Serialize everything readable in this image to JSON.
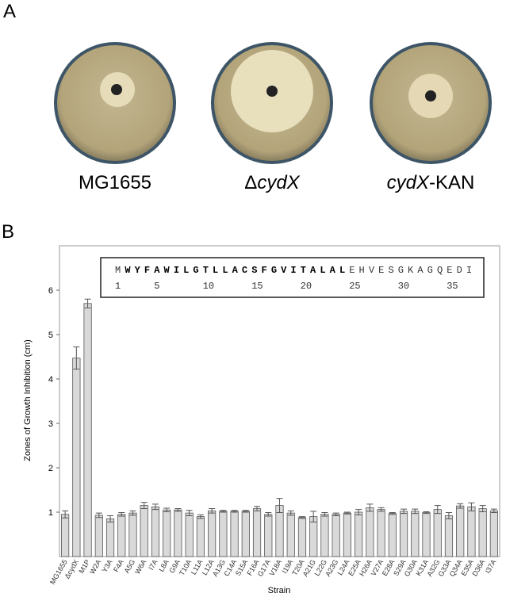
{
  "panel_a": {
    "label": "A",
    "plates": [
      {
        "label_parts": [
          "MG1655"
        ]
      },
      {
        "label_parts": [
          "Δ",
          "cydX"
        ]
      },
      {
        "label_parts": [
          "cydX",
          "-KAN"
        ]
      }
    ]
  },
  "chart_data": {
    "type": "bar",
    "panel_label": "B",
    "y_label": "Zones of Growth Inhibition (cm)",
    "x_label": "Strain",
    "categories": [
      "MG1655",
      "ΔcydX",
      "M1P",
      "W2A",
      "Y3A",
      "F4A",
      "A5G",
      "W6A",
      "I7A",
      "L8A",
      "G9A",
      "T10A",
      "L11A",
      "L12A",
      "A13G",
      "C14A",
      "S15A",
      "F16A",
      "G17A",
      "V18A",
      "I19A",
      "T20A",
      "A21G",
      "L22G",
      "A23G",
      "L24A",
      "E25A",
      "H26A",
      "V27A",
      "E28A",
      "S29A",
      "G30A",
      "K31A",
      "A32G",
      "G33A",
      "Q34A",
      "E35A",
      "D36A",
      "I37A"
    ],
    "values": [
      0.95,
      4.47,
      5.7,
      0.93,
      0.85,
      0.95,
      0.98,
      1.15,
      1.12,
      1.05,
      1.05,
      0.98,
      0.9,
      1.03,
      1.02,
      1.02,
      1.02,
      1.08,
      0.95,
      1.15,
      0.98,
      0.88,
      0.9,
      0.95,
      0.95,
      0.98,
      1.0,
      1.1,
      1.06,
      0.97,
      1.02,
      1.02,
      0.99,
      1.06,
      0.92,
      1.14,
      1.12,
      1.08,
      1.03
    ],
    "errors": [
      0.08,
      0.25,
      0.1,
      0.05,
      0.07,
      0.04,
      0.05,
      0.07,
      0.06,
      0.04,
      0.03,
      0.06,
      0.04,
      0.05,
      0.02,
      0.02,
      0.02,
      0.05,
      0.04,
      0.16,
      0.05,
      0.02,
      0.12,
      0.04,
      0.03,
      0.02,
      0.06,
      0.08,
      0.04,
      0.02,
      0.05,
      0.05,
      0.02,
      0.09,
      0.07,
      0.05,
      0.09,
      0.07,
      0.04
    ],
    "color": "#d9d9d9",
    "ylim": [
      0,
      7
    ],
    "yticks": [
      1,
      2,
      3,
      4,
      5,
      6
    ],
    "sequence": {
      "start": "M",
      "bold": "WYFAWILGTLLACSFGVITALAL",
      "end": "EHVESGKAGQEDI",
      "positions": [
        1,
        5,
        10,
        15,
        20,
        25,
        30,
        35
      ]
    }
  }
}
